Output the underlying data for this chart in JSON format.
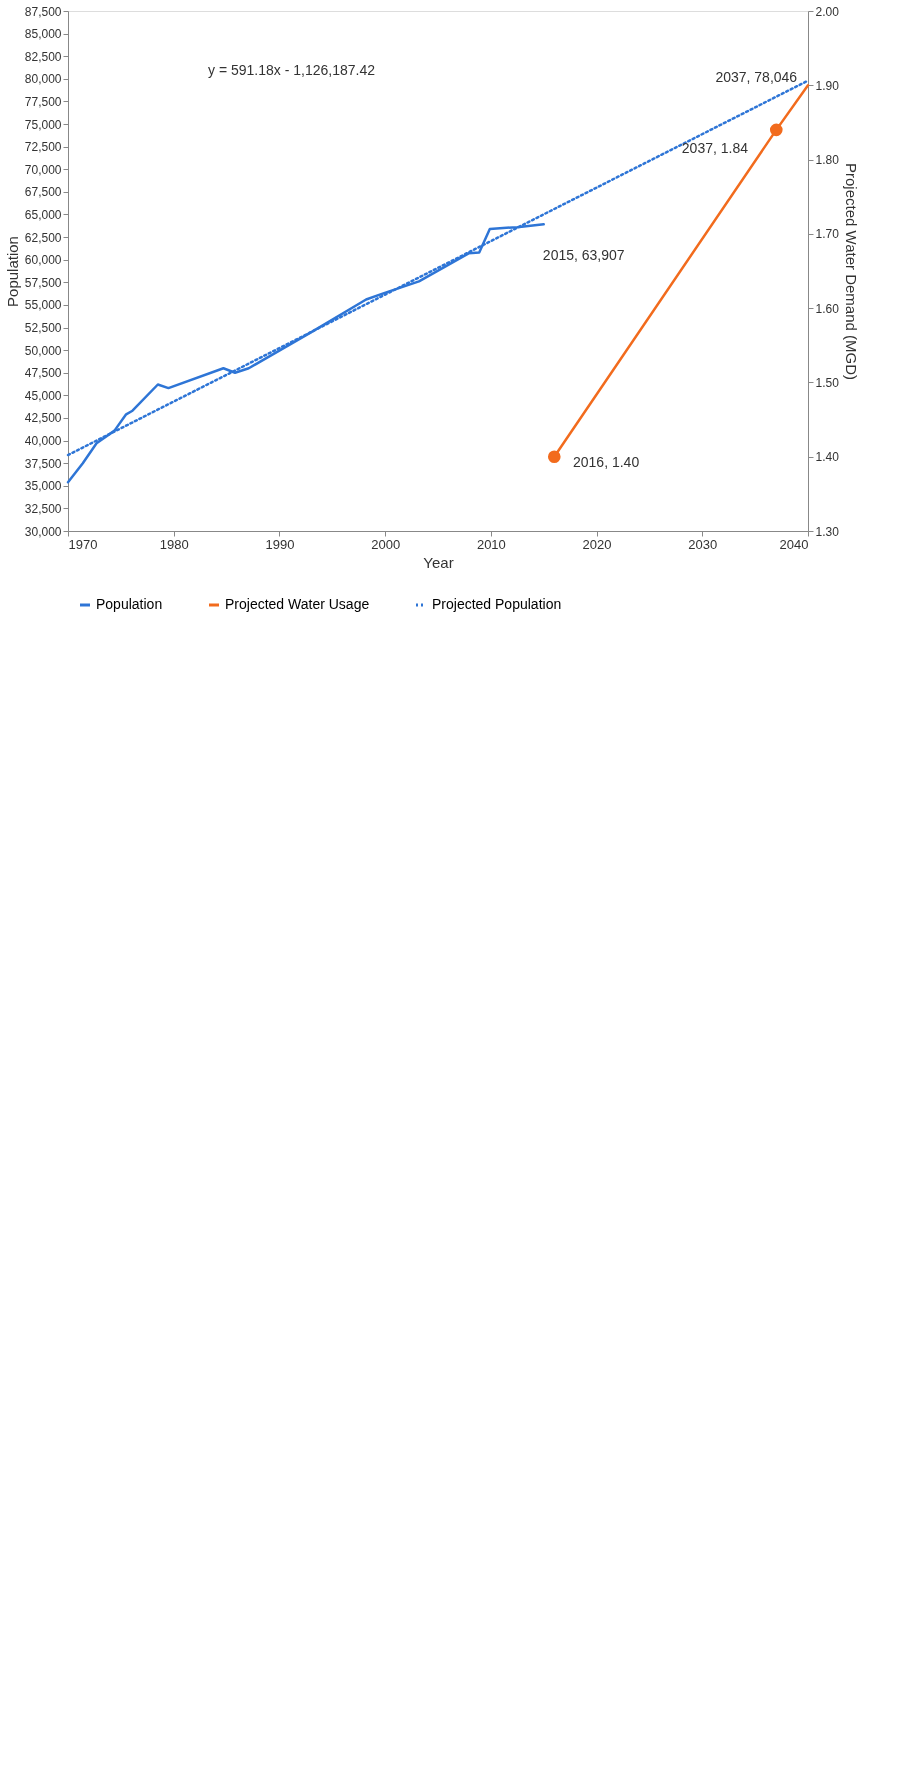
{
  "chart_data": {
    "type": "line",
    "xlabel": "Year",
    "ylabel": "Population",
    "y2label": "Projected Water Demand (MGD)",
    "xlim": [
      1970,
      2040
    ],
    "xticks": [
      1970,
      1980,
      1990,
      2000,
      2010,
      2020,
      2030,
      2040
    ],
    "ylim": [
      30000,
      87500
    ],
    "yticks": [
      {
        "value": 30000,
        "label": "30,000"
      },
      {
        "value": 32500,
        "label": "32,500"
      },
      {
        "value": 35000,
        "label": "35,000"
      },
      {
        "value": 37500,
        "label": "37,500"
      },
      {
        "value": 40000,
        "label": "40,000"
      },
      {
        "value": 42500,
        "label": "42,500"
      },
      {
        "value": 45000,
        "label": "45,000"
      },
      {
        "value": 47500,
        "label": "47,500"
      },
      {
        "value": 50000,
        "label": "50,000"
      },
      {
        "value": 52500,
        "label": "52,500"
      },
      {
        "value": 55000,
        "label": "55,000"
      },
      {
        "value": 57500,
        "label": "57,500"
      },
      {
        "value": 60000,
        "label": "60,000"
      },
      {
        "value": 62500,
        "label": "62,500"
      },
      {
        "value": 65000,
        "label": "65,000"
      },
      {
        "value": 67500,
        "label": "67,500"
      },
      {
        "value": 70000,
        "label": "70,000"
      },
      {
        "value": 72500,
        "label": "72,500"
      },
      {
        "value": 75000,
        "label": "75,000"
      },
      {
        "value": 77500,
        "label": "77,500"
      },
      {
        "value": 80000,
        "label": "80,000"
      },
      {
        "value": 82500,
        "label": "82,500"
      },
      {
        "value": 85000,
        "label": "85,000"
      },
      {
        "value": 87500,
        "label": "87,500"
      }
    ],
    "y2lim": [
      1.3,
      2.0
    ],
    "y2ticks": [
      {
        "value": 1.3,
        "label": "1.30"
      },
      {
        "value": 1.4,
        "label": "1.40"
      },
      {
        "value": 1.5,
        "label": "1.50"
      },
      {
        "value": 1.6,
        "label": "1.60"
      },
      {
        "value": 1.7,
        "label": "1.70"
      },
      {
        "value": 1.8,
        "label": "1.80"
      },
      {
        "value": 1.9,
        "label": "1.90"
      },
      {
        "value": 2.0,
        "label": "2.00"
      }
    ],
    "legend": "bottom",
    "series": [
      {
        "name": "Population",
        "color": "#2e75d6",
        "type": "line",
        "line_style": "solid",
        "x": [
          1970,
          1971.4,
          1972.7,
          1974.4,
          1975.5,
          1976.1,
          1978.5,
          1979.5,
          1984.7,
          1985.8,
          1987.1,
          1992.9,
          1998.2,
          1999.9,
          2003.2,
          2007.9,
          2008.9,
          2009.9,
          2012.5,
          2015
        ],
        "values": [
          35400,
          37500,
          39700,
          41100,
          42900,
          43300,
          46200,
          45800,
          48000,
          47500,
          48000,
          51900,
          55600,
          56300,
          57600,
          60700,
          60800,
          63400,
          63600,
          63907
        ]
      },
      {
        "name": "Projected Water Usage",
        "color": "#f26b1d",
        "type": "line",
        "line_style": "solid",
        "axis": "y2",
        "x": [
          2016,
          2037,
          2040
        ],
        "values": [
          1.4,
          1.84,
          1.9
        ]
      },
      {
        "name": "Projected Population",
        "color": "#2e75d6",
        "type": "line",
        "line_style": "dotted",
        "x": [
          1970,
          2040
        ],
        "values": [
          38400,
          79800
        ]
      },
      {
        "color": "#f26b1d",
        "type": "scatter",
        "marker": "circle",
        "axis": "y2",
        "x": [
          2016,
          2037
        ],
        "values": [
          1.4,
          1.84
        ]
      }
    ],
    "annotations": [
      {
        "text": "2015, 63,907",
        "x": 2015,
        "y": 63907
      },
      {
        "text": "2037, 78,046",
        "x": 2037,
        "y": 78046
      },
      "2037, 1.84",
      "2016, 1.40",
      "y = 591.18x - 1,126,187.42"
    ]
  }
}
